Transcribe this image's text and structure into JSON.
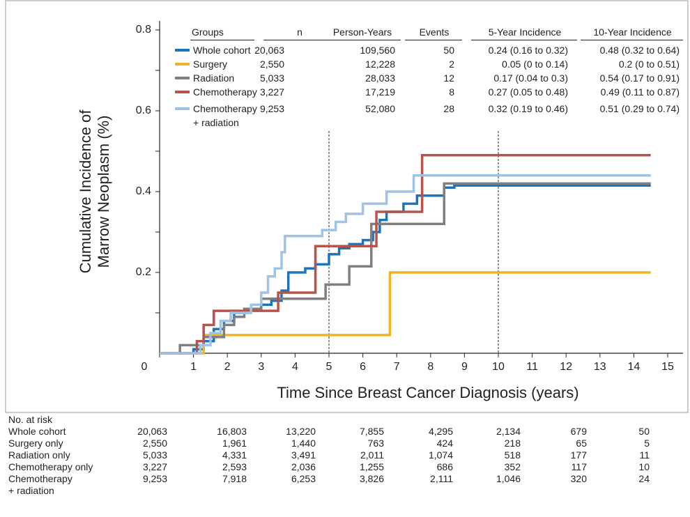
{
  "chart_data": {
    "type": "step",
    "xlabel": "Time Since Breast Cancer Diagnosis (years)",
    "ylabel": [
      "Cumulative Incidence of",
      "Marrow Neoplasm (%)"
    ],
    "xlim": [
      0,
      15
    ],
    "ylim": [
      0,
      0.8
    ],
    "xticks": [
      0,
      1,
      2,
      3,
      4,
      5,
      6,
      7,
      8,
      9,
      10,
      11,
      12,
      13,
      14,
      15
    ],
    "yticks": [
      0.2,
      0.4,
      0.6,
      0.8
    ],
    "yminorticks": [
      0.1,
      0.3,
      0.5,
      0.7
    ],
    "reference_lines": [
      5,
      10
    ],
    "series": [
      {
        "name": "Whole cohort",
        "color": "#1c74bb",
        "x": [
          0,
          1.0,
          1.3,
          1.6,
          1.9,
          2.2,
          2.6,
          3.0,
          3.3,
          3.6,
          3.8,
          4.3,
          4.6,
          5.0,
          5.3,
          5.6,
          6.0,
          6.3,
          6.5,
          6.7,
          7.2,
          7.6,
          8.4,
          8.7,
          14.5
        ],
        "values": [
          0,
          0.01,
          0.03,
          0.06,
          0.08,
          0.1,
          0.11,
          0.12,
          0.13,
          0.155,
          0.2,
          0.21,
          0.22,
          0.245,
          0.26,
          0.27,
          0.28,
          0.3,
          0.33,
          0.35,
          0.37,
          0.39,
          0.41,
          0.415,
          0.415
        ]
      },
      {
        "name": "Surgery",
        "color": "#eeb422",
        "x": [
          0,
          1.3,
          6.8,
          14.5
        ],
        "values": [
          0,
          0.045,
          0.2,
          0.2
        ]
      },
      {
        "name": "Radiation",
        "color": "#7f7f7f",
        "x": [
          0,
          0.6,
          1.3,
          1.9,
          2.2,
          2.5,
          3.0,
          4.9,
          5.6,
          6.25,
          8.4,
          14.5
        ],
        "values": [
          0,
          0.02,
          0.04,
          0.07,
          0.09,
          0.11,
          0.135,
          0.17,
          0.215,
          0.32,
          0.42,
          0.42
        ]
      },
      {
        "name": "Chemotherapy",
        "color": "#b9524b",
        "x": [
          0,
          1.1,
          1.3,
          1.6,
          3.5,
          4.6,
          6.4,
          7.75,
          14.5
        ],
        "values": [
          0,
          0.03,
          0.07,
          0.105,
          0.15,
          0.265,
          0.35,
          0.49,
          0.49
        ]
      },
      {
        "name": "Chemotherapy\n+ radiation",
        "color": "#9fc2e7",
        "x": [
          0,
          1.2,
          1.5,
          1.8,
          2.1,
          2.7,
          3.0,
          3.2,
          3.4,
          3.6,
          3.7,
          4.8,
          5.2,
          5.5,
          6.0,
          6.7,
          7.5,
          14.5
        ],
        "values": [
          0,
          0.02,
          0.05,
          0.08,
          0.1,
          0.12,
          0.15,
          0.19,
          0.21,
          0.25,
          0.29,
          0.305,
          0.325,
          0.345,
          0.37,
          0.4,
          0.44,
          0.44
        ]
      }
    ],
    "legend_table": {
      "columns": [
        "Groups",
        "n",
        "Person-Years",
        "Events",
        "5-Year Incidence",
        "10-Year Incidence"
      ],
      "rows": [
        [
          "20,063",
          "109,560",
          "50",
          "0.24 (0.16 to 0.32)",
          "0.48 (0.32 to 0.64)"
        ],
        [
          "2,550",
          "12,228",
          "2",
          "0.05 (0 to 0.14)",
          "0.2 (0 to 0.51)"
        ],
        [
          "5,033",
          "28,033",
          "12",
          "0.17 (0.04 to 0.3)",
          "0.54 (0.17 to 0.91)"
        ],
        [
          "3,227",
          "17,219",
          "8",
          "0.27 (0.05 to 0.48)",
          "0.49 (0.11 to 0.87)"
        ],
        [
          "9,253",
          "52,080",
          "28",
          "0.32 (0.19 to 0.46)",
          "0.51 (0.29 to 0.74)"
        ]
      ]
    },
    "risk_table": {
      "title": "No. at risk",
      "rows": [
        {
          "label": "Whole cohort",
          "counts": [
            "20,063",
            "16,803",
            "13,220",
            "7,855",
            "4,295",
            "2,134",
            "679",
            "50"
          ]
        },
        {
          "label": "Surgery only",
          "counts": [
            "2,550",
            "1,961",
            "1,440",
            "763",
            "424",
            "218",
            "65",
            "5"
          ]
        },
        {
          "label": "Radiation only",
          "counts": [
            "5,033",
            "4,331",
            "3,491",
            "2,011",
            "1,074",
            "518",
            "177",
            "11"
          ]
        },
        {
          "label": "Chemotherapy only",
          "counts": [
            "3,227",
            "2,593",
            "2,036",
            "1,255",
            "686",
            "352",
            "117",
            "10"
          ]
        },
        {
          "label": "Chemotherapy\n+ radiation",
          "counts": [
            "9,253",
            "7,918",
            "6,253",
            "3,826",
            "2,111",
            "1,046",
            "320",
            "24"
          ]
        }
      ]
    }
  }
}
